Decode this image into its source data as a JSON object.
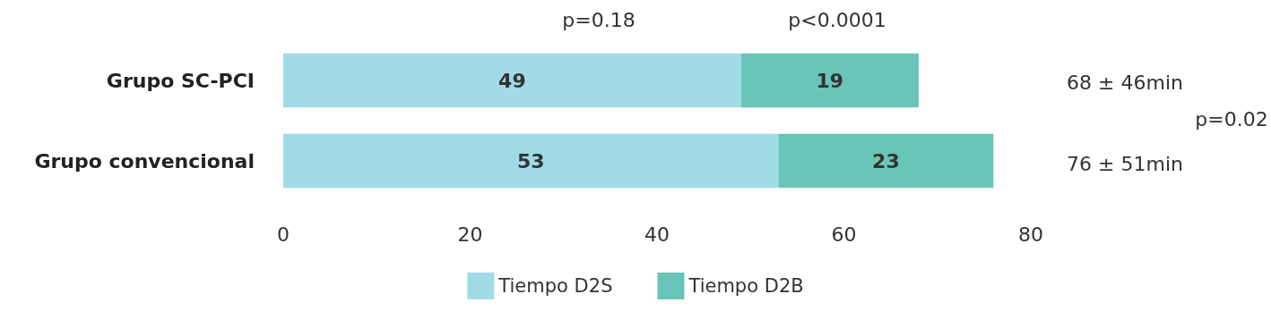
{
  "chart_data": {
    "type": "bar",
    "orientation": "horizontal",
    "stacked": true,
    "categories": [
      "Grupo SC-PCI",
      "Grupo convencional"
    ],
    "series": [
      {
        "name": "Tiempo D2S",
        "color": "#a0dbe6",
        "values": [
          49,
          53
        ]
      },
      {
        "name": "Tiempo D2B",
        "color": "#68c5b8",
        "values": [
          19,
          23
        ]
      }
    ],
    "xlim": [
      0,
      80
    ],
    "xticks": [
      0,
      20,
      40,
      60,
      80
    ],
    "grid": false,
    "legend": "bottom",
    "data_labels": true,
    "annotations": [
      "p=0.18",
      "p<0.0001",
      "68 ± 46min",
      "76 ± 51min",
      "p=0.02"
    ]
  }
}
